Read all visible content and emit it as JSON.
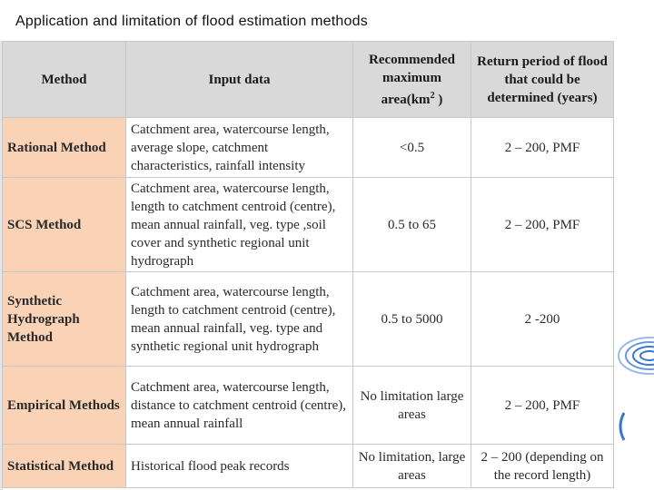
{
  "page": {
    "title": "Application and limitation of flood estimation methods"
  },
  "table": {
    "headers": {
      "method": "Method",
      "input": "Input data",
      "area_pre": "Recommended maximum area(km",
      "area_sup": "2",
      "area_post": ")",
      "return": "Return period of flood that could be determined (years)"
    },
    "rows": [
      {
        "method": "Rational Method",
        "input": "Catchment area, watercourse length, average slope, catchment characteristics, rainfall intensity",
        "area": "<0.5",
        "return": "2 – 200, PMF"
      },
      {
        "method": "SCS Method",
        "input": "Catchment area, watercourse length, length to catchment centroid (centre), mean annual rainfall, veg. type ,soil cover and synthetic regional unit hydrograph",
        "area": "0.5 to 65",
        "return": "2 – 200, PMF"
      },
      {
        "method": "Synthetic Hydrograph Method",
        "input": "Catchment area, watercourse length, length to catchment centroid (centre), mean annual rainfall, veg. type and synthetic regional unit hydrograph",
        "area": "0.5 to 5000",
        "return": "2 -200"
      },
      {
        "method": "Empirical Methods",
        "input": "Catchment area, watercourse length, distance to catchment centroid (centre), mean annual rainfall",
        "area": "No limitation large areas",
        "return": "2 – 200, PMF"
      },
      {
        "method": "Statistical Method",
        "input": "Historical flood peak records",
        "area": "No limitation, large areas",
        "return": "2 – 200 (depending on the record length)"
      }
    ]
  }
}
